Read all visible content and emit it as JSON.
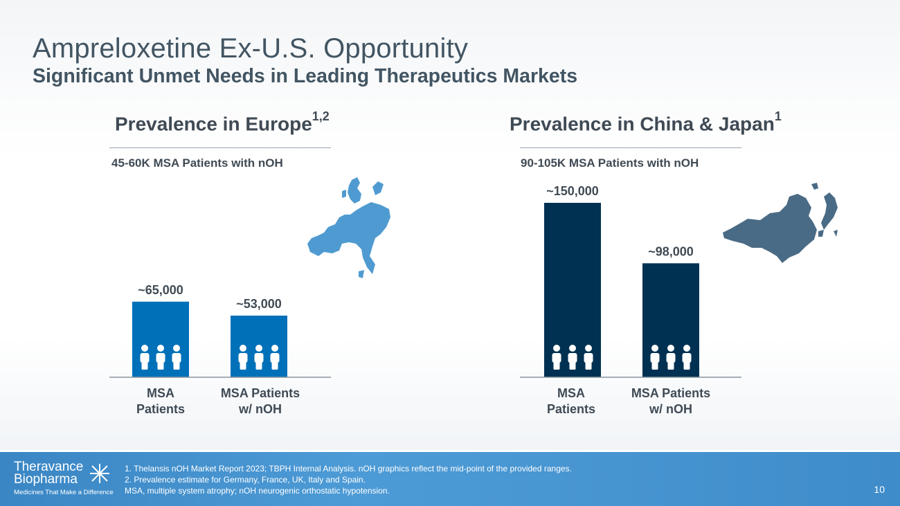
{
  "slide": {
    "title": "Ampreloxetine Ex-U.S. Opportunity",
    "subtitle": "Significant Unmet Needs in Leading Therapeutics Markets",
    "page_number": "10"
  },
  "panels": [
    {
      "title": "Prevalence in Europe",
      "superscript": "1,2",
      "subtitle": "45-60K MSA Patients with nOH",
      "map_icon": "europe-map-icon",
      "bar_color": "#0070b8",
      "categories": [
        "MSA\nPatients",
        "MSA Patients\nw/ nOH"
      ],
      "value_labels": [
        "~65,000",
        "~53,000"
      ]
    },
    {
      "title": "Prevalence in China & Japan",
      "superscript": "1",
      "subtitle": "90-105K MSA Patients with nOH",
      "map_icon": "china-japan-map-icon",
      "bar_color": "#003152",
      "categories": [
        "MSA\nPatients",
        "MSA Patients\nw/ nOH"
      ],
      "value_labels": [
        "~150,000",
        "~98,000"
      ]
    }
  ],
  "chart_data": [
    {
      "type": "bar",
      "title": "Prevalence in Europe",
      "categories": [
        "MSA Patients",
        "MSA Patients w/ nOH"
      ],
      "values": [
        65000,
        53000
      ],
      "data_labels": [
        "~65,000",
        "~53,000"
      ],
      "ylim": [
        0,
        150000
      ],
      "grid": false,
      "color": "#0070b8"
    },
    {
      "type": "bar",
      "title": "Prevalence in China & Japan",
      "categories": [
        "MSA Patients",
        "MSA Patients w/ nOH"
      ],
      "values": [
        150000,
        98000
      ],
      "data_labels": [
        "~150,000",
        "~98,000"
      ],
      "ylim": [
        0,
        150000
      ],
      "grid": false,
      "color": "#003152"
    }
  ],
  "footer": {
    "logo_line1": "Theravance",
    "logo_line2": "Biopharma",
    "logo_tagline": "Medicines That Make a Difference",
    "notes": [
      "1. Thelansis nOH Market Report 2023; TBPH Internal Analysis.  nOH graphics reflect the mid-point of the provided ranges.",
      "2. Prevalence estimate for Germany, France, UK, Italy and Spain.",
      "MSA, multiple system atrophy; nOH neurogenic orthostatic hypotension."
    ],
    "background_color": "#4a97d4"
  }
}
